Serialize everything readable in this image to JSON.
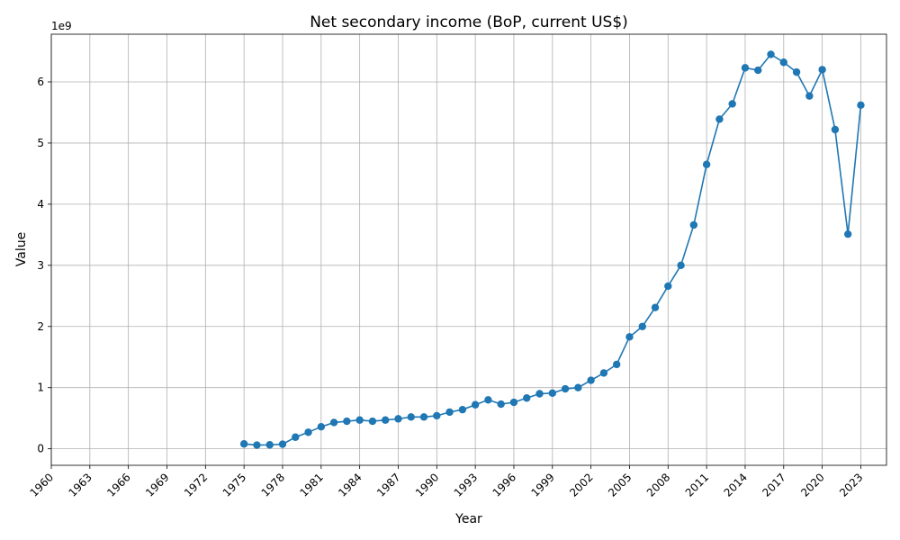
{
  "chart_data": {
    "type": "line",
    "title": "Net secondary income (BoP, current US$)",
    "xlabel": "Year",
    "ylabel": "Value",
    "y_offset_label": "1e9",
    "xlim": [
      1960,
      2025
    ],
    "ylim": [
      -270000000,
      6780000000
    ],
    "x_ticks": [
      1960,
      1963,
      1966,
      1969,
      1972,
      1975,
      1978,
      1981,
      1984,
      1987,
      1990,
      1993,
      1996,
      1999,
      2002,
      2005,
      2008,
      2011,
      2014,
      2017,
      2020,
      2023
    ],
    "y_ticks": [
      0,
      1,
      2,
      3,
      4,
      5,
      6
    ],
    "grid": true,
    "marker": "circle",
    "color": "#1f77b4",
    "x": [
      1975,
      1976,
      1977,
      1978,
      1979,
      1980,
      1981,
      1982,
      1983,
      1984,
      1985,
      1986,
      1987,
      1988,
      1989,
      1990,
      1991,
      1992,
      1993,
      1994,
      1995,
      1996,
      1997,
      1998,
      1999,
      2000,
      2001,
      2002,
      2003,
      2004,
      2005,
      2006,
      2007,
      2008,
      2009,
      2010,
      2011,
      2012,
      2013,
      2014,
      2015,
      2016,
      2017,
      2018,
      2019,
      2020,
      2021,
      2022,
      2023
    ],
    "y": [
      80000000,
      60000000,
      65000000,
      75000000,
      190000000,
      270000000,
      360000000,
      430000000,
      450000000,
      470000000,
      450000000,
      470000000,
      490000000,
      520000000,
      520000000,
      540000000,
      600000000,
      640000000,
      720000000,
      800000000,
      730000000,
      760000000,
      830000000,
      900000000,
      910000000,
      980000000,
      1000000000,
      1120000000,
      1240000000,
      1380000000,
      1830000000,
      2000000000,
      2310000000,
      2660000000,
      3000000000,
      3660000000,
      4650000000,
      5390000000,
      5640000000,
      6230000000,
      6190000000,
      6450000000,
      6320000000,
      6160000000,
      5770000000,
      6200000000,
      5220000000,
      3510000000,
      5620000000
    ]
  }
}
